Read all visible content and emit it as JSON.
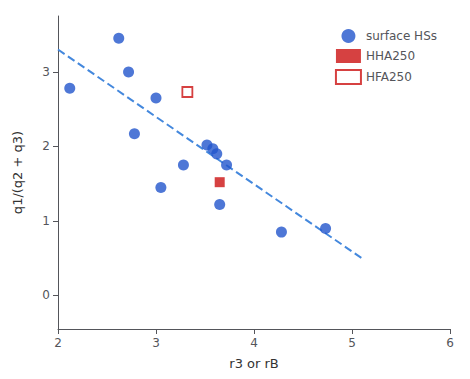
{
  "chart_data": {
    "type": "scatter",
    "xlabel": "r3 or rB",
    "ylabel": "q1/(q2 + q3)",
    "xlim": [
      2.0,
      6.0
    ],
    "ylim": [
      -0.45,
      3.75
    ],
    "xticks": [
      2,
      3,
      4,
      5,
      6
    ],
    "yticks": [
      0,
      1,
      2,
      3
    ],
    "grid": false,
    "legend": "upper right",
    "series": [
      {
        "name": "surface HSs",
        "type": "scatter",
        "marker": "circle",
        "color": "#2255cc",
        "values": [
          [
            2.12,
            2.78
          ],
          [
            2.62,
            3.45
          ],
          [
            2.72,
            3.0
          ],
          [
            2.78,
            2.17
          ],
          [
            3.0,
            2.65
          ],
          [
            3.05,
            1.45
          ],
          [
            3.28,
            1.75
          ],
          [
            3.52,
            2.02
          ],
          [
            3.58,
            1.97
          ],
          [
            3.62,
            1.9
          ],
          [
            3.72,
            1.75
          ],
          [
            3.65,
            1.22
          ],
          [
            4.28,
            0.85
          ],
          [
            4.73,
            0.9
          ]
        ]
      },
      {
        "name": "HHA250",
        "type": "scatter",
        "marker": "square",
        "color": "#cc1111",
        "values": [
          [
            3.65,
            1.52
          ]
        ]
      },
      {
        "name": "HFA250",
        "type": "scatter",
        "marker": "open_square",
        "color": "#cc1111",
        "values": [
          [
            3.32,
            2.73
          ]
        ]
      },
      {
        "type": "line",
        "line_style": "dashed",
        "color": "#4488dd",
        "values": [
          [
            2.0,
            3.3
          ],
          [
            5.1,
            0.5
          ]
        ]
      }
    ]
  }
}
